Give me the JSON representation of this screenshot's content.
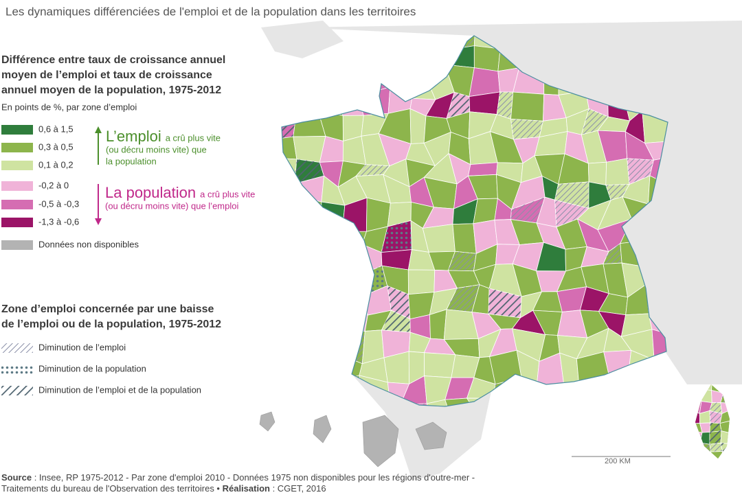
{
  "title": "Les dynamiques différenciées de l'emploi et de la population dans les territoires",
  "legend_change": {
    "title": [
      "Différence entre taux de croissance annuel",
      "moyen de l’emploi et taux de croissance",
      "annuel moyen de la population, 1975-2012"
    ],
    "subtitle": "En points de %, par zone d’emploi",
    "classes": [
      {
        "label": "0,6 à 1,5",
        "color": "#2f7d3c"
      },
      {
        "label": "0,3 à 0,5",
        "color": "#8db54c"
      },
      {
        "label": "0,1 à 0,2",
        "color": "#cfe3a1"
      },
      {
        "label": "-0,2 à 0",
        "color": "#f0b3d8"
      },
      {
        "label": "-0,5 à -0,3",
        "color": "#d56db2"
      },
      {
        "label": "-1,3 à -0,6",
        "color": "#9b1467"
      }
    ],
    "missing": {
      "label": "Données non disponibles",
      "color": "#b3b3b3"
    },
    "employment": {
      "head": "L’emploi",
      "lines": [
        "a crû plus vite",
        "(ou décru moins vite) que",
        "la population"
      ],
      "color": "#4b8f2b"
    },
    "population": {
      "head": "La population",
      "lines": [
        "a crû plus vite",
        "(ou décru moins vite) que l’emploi"
      ],
      "color": "#c0288a"
    }
  },
  "legend_decline": {
    "title": [
      "Zone d’emploi concernée par une baisse",
      "de l’emploi ou de la population, 1975-2012"
    ],
    "items": [
      "Diminution de l’emploi",
      "Diminution de la population",
      "Diminution de l’emploi et de la population"
    ]
  },
  "scale": "200 KM",
  "source": [
    [
      {
        "text": "Source",
        "bold": true
      },
      {
        "text": " : Insee, RP 1975-2012 - Par zone d'emploi 2010 - Données 1975 non disponibles pour les régions d'outre-mer -",
        "bold": false
      }
    ],
    [
      {
        "text": "Traitements du bureau de l'Observation des territoires • ",
        "bold": false
      },
      {
        "text": "Réalisation",
        "bold": true
      },
      {
        "text": " : CGET, 2016",
        "bold": false
      }
    ]
  ]
}
